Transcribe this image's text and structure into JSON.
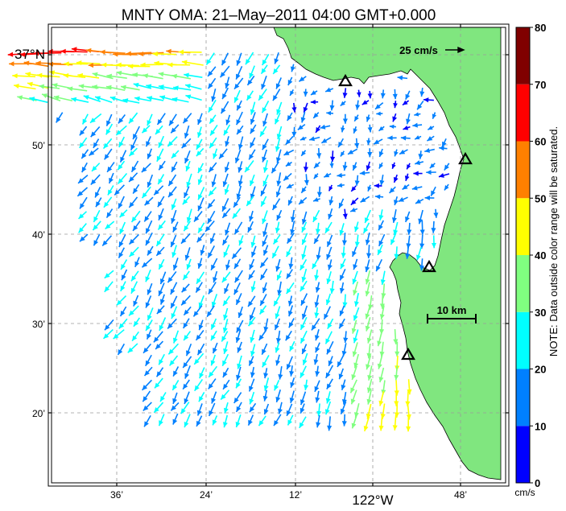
{
  "title": "MNTY OMA: 21–May–2011 04:00 GMT+0.000",
  "map": {
    "lat_labels": [
      {
        "text": "37°N",
        "lat_min": 60
      },
      {
        "text": "50’",
        "lat_min": 50
      },
      {
        "text": "40’",
        "lat_min": 40
      },
      {
        "text": "30’",
        "lat_min": 30
      },
      {
        "text": "20’",
        "lat_min": 20
      }
    ],
    "lon_labels": [
      {
        "text": "36’",
        "lon_min": -24
      },
      {
        "text": "24’",
        "lon_min": -36
      },
      {
        "text": "12’",
        "lon_min": -48
      },
      {
        "text": "122°W",
        "lon_min": -60
      },
      {
        "text": "48’",
        "lon_min": -72
      }
    ],
    "reference_vector_label": "25 cm/s",
    "scale_bar_label": "10 km",
    "land_color": "#80e67f",
    "grid": true,
    "stations": [
      "station-1",
      "station-2",
      "station-3",
      "station-4"
    ]
  },
  "colorbar": {
    "ticks": [
      "0",
      "10",
      "20",
      "30",
      "40",
      "50",
      "60",
      "70",
      "80"
    ],
    "colors": [
      "#0000ff",
      "#0080ff",
      "#00ffff",
      "#80ff80",
      "#ffff00",
      "#ff8000",
      "#ff0000",
      "#800000"
    ],
    "unit": "cm/s",
    "note": "NOTE: Data outside color range will be saturated."
  }
}
